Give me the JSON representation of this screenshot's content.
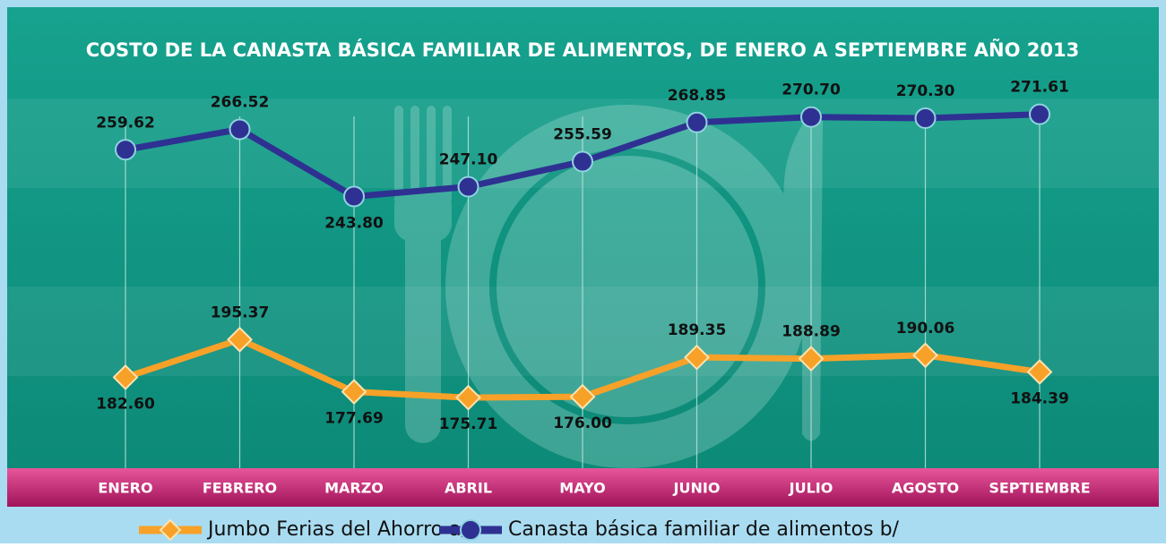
{
  "chart_data": {
    "type": "line",
    "title": "COSTO DE LA CANASTA BÁSICA FAMILIAR DE ALIMENTOS, DE ENERO A SEPTIEMBRE AÑO 2013",
    "categories": [
      "ENERO",
      "FEBRERO",
      "MARZO",
      "ABRIL",
      "MAYO",
      "JUNIO",
      "JULIO",
      "AGOSTO",
      "SEPTIEMBRE"
    ],
    "series": [
      {
        "name": "Jumbo Ferias del Ahorro a/",
        "color": "#f7a128",
        "marker": "diamond",
        "values": [
          182.6,
          195.37,
          177.69,
          175.71,
          176.0,
          189.35,
          188.89,
          190.06,
          184.39
        ],
        "value_labels": [
          "182.60",
          "195.37",
          "177.69",
          "175.71",
          "176.00",
          "189.35",
          "188.89",
          "190.06",
          "184.39"
        ]
      },
      {
        "name": "Canasta básica familiar de alimentos b/",
        "color": "#2e3192",
        "marker": "circle",
        "values": [
          259.62,
          266.52,
          243.8,
          247.1,
          255.59,
          268.85,
          270.7,
          270.3,
          271.61
        ],
        "value_labels": [
          "259.62",
          "266.52",
          "243.80",
          "247.10",
          "255.59",
          "268.85",
          "270.70",
          "270.30",
          "271.61"
        ]
      }
    ],
    "ylim": [
      160,
      290
    ]
  }
}
